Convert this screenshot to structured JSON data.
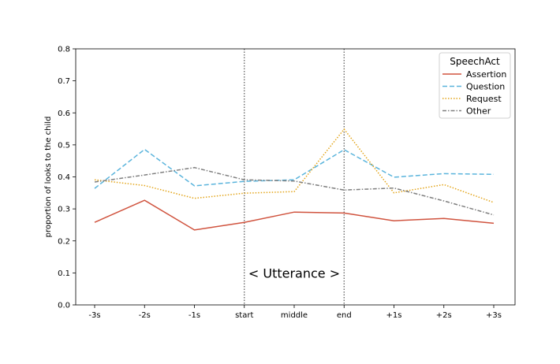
{
  "chart_data": {
    "type": "line",
    "categories": [
      "-3s",
      "-2s",
      "-1s",
      "start",
      "middle",
      "end",
      "+1s",
      "+2s",
      "+3s"
    ],
    "ylabel": "proportion of looks to the child",
    "xlabel": "",
    "ylim": [
      0,
      0.8
    ],
    "yticks": [
      "0.0",
      "0.1",
      "0.2",
      "0.3",
      "0.4",
      "0.5",
      "0.6",
      "0.7",
      "0.8"
    ],
    "grid": false,
    "legend": {
      "title": "SpeechAct",
      "position": "top-right"
    },
    "annotation": "< Utterance >",
    "vlines_at": [
      "start",
      "end"
    ],
    "series": [
      {
        "name": "Assertion",
        "color": "#d0533e",
        "dash": "solid",
        "values": [
          0.258,
          0.327,
          0.234,
          0.258,
          0.29,
          0.287,
          0.263,
          0.27,
          0.255
        ]
      },
      {
        "name": "Question",
        "color": "#5ab4dc",
        "dash": "dashed",
        "values": [
          0.364,
          0.486,
          0.372,
          0.386,
          0.391,
          0.485,
          0.399,
          0.41,
          0.408
        ]
      },
      {
        "name": "Request",
        "color": "#e3a418",
        "dash": "dotted",
        "values": [
          0.391,
          0.373,
          0.333,
          0.349,
          0.354,
          0.549,
          0.35,
          0.376,
          0.32
        ]
      },
      {
        "name": "Other",
        "color": "#7f7f7f",
        "dash": "dashdot",
        "values": [
          0.384,
          0.406,
          0.429,
          0.391,
          0.387,
          0.359,
          0.365,
          0.325,
          0.281
        ]
      }
    ]
  }
}
